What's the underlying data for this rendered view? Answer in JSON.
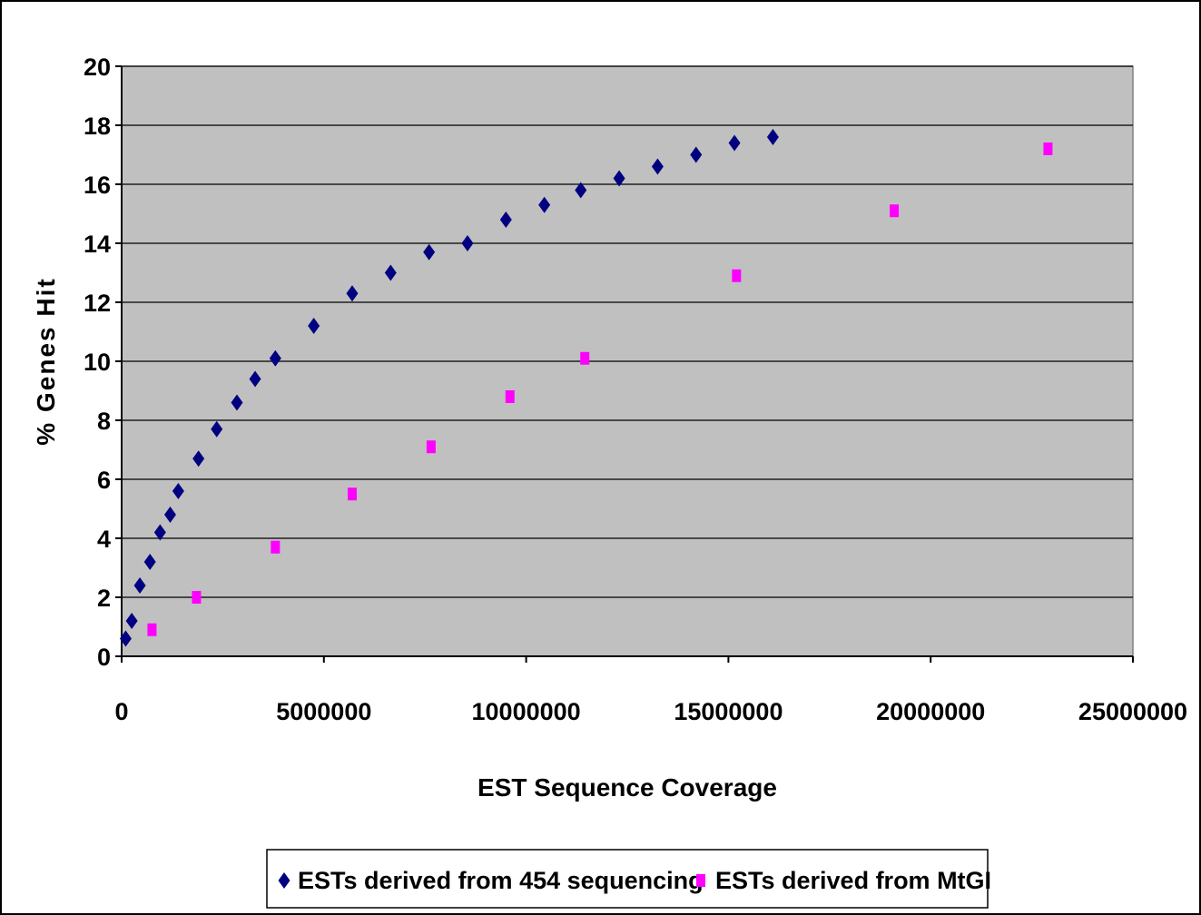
{
  "chart_data": {
    "type": "scatter",
    "title": "",
    "xlabel": "EST Sequence Coverage",
    "ylabel": "% Genes Hit",
    "xlim": [
      0,
      25000000
    ],
    "ylim": [
      0,
      20
    ],
    "x_ticks": [
      0,
      5000000,
      10000000,
      15000000,
      20000000,
      25000000
    ],
    "x_tick_labels": [
      "0",
      "5000000",
      "10000000",
      "15000000",
      "20000000",
      "25000000"
    ],
    "y_ticks": [
      0,
      2,
      4,
      6,
      8,
      10,
      12,
      14,
      16,
      18,
      20
    ],
    "y_tick_labels": [
      "0",
      "2",
      "4",
      "6",
      "8",
      "10",
      "12",
      "14",
      "16",
      "18",
      "20"
    ],
    "grid": "horizontal",
    "legend_position": "bottom",
    "plot_background": "#C0C0C0",
    "series": [
      {
        "name": "ESTs derived from 454 sequencing",
        "marker": "diamond",
        "color": "#000080",
        "points": [
          [
            100000,
            0.6
          ],
          [
            250000,
            1.2
          ],
          [
            450000,
            2.4
          ],
          [
            700000,
            3.2
          ],
          [
            950000,
            4.2
          ],
          [
            1200000,
            4.8
          ],
          [
            1400000,
            5.6
          ],
          [
            1900000,
            6.7
          ],
          [
            2350000,
            7.7
          ],
          [
            2850000,
            8.6
          ],
          [
            3300000,
            9.4
          ],
          [
            3800000,
            10.1
          ],
          [
            4750000,
            11.2
          ],
          [
            5700000,
            12.3
          ],
          [
            6650000,
            13.0
          ],
          [
            7600000,
            13.7
          ],
          [
            8550000,
            14.0
          ],
          [
            9500000,
            14.8
          ],
          [
            10450000,
            15.3
          ],
          [
            11350000,
            15.8
          ],
          [
            12300000,
            16.2
          ],
          [
            13250000,
            16.6
          ],
          [
            14200000,
            17.0
          ],
          [
            15150000,
            17.4
          ],
          [
            16100000,
            17.6
          ]
        ]
      },
      {
        "name": "ESTs derived from MtGI",
        "marker": "square",
        "color": "#FF00FF",
        "points": [
          [
            750000,
            0.9
          ],
          [
            1850000,
            2.0
          ],
          [
            3800000,
            3.7
          ],
          [
            5700000,
            5.5
          ],
          [
            7650000,
            7.1
          ],
          [
            9600000,
            8.8
          ],
          [
            11450000,
            10.1
          ],
          [
            15200000,
            12.9
          ],
          [
            19100000,
            15.1
          ],
          [
            22900000,
            17.2
          ]
        ]
      }
    ]
  }
}
